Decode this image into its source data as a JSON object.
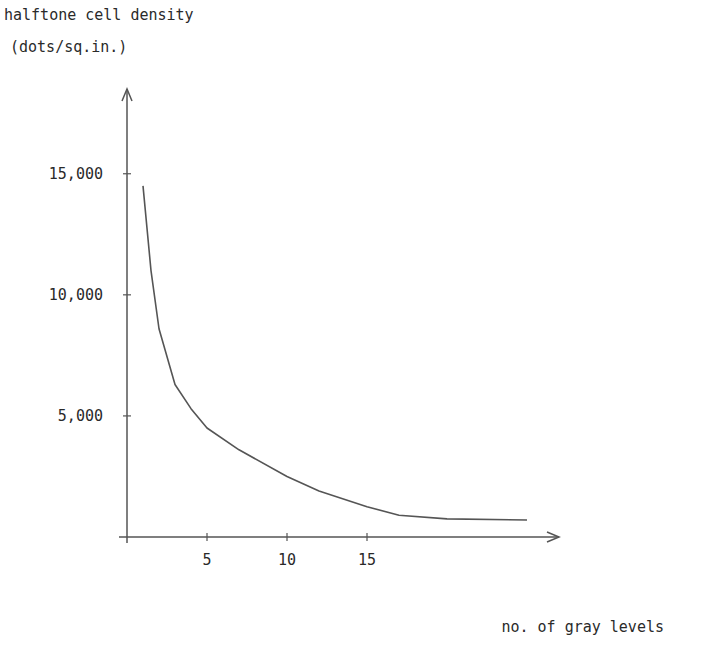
{
  "chart_data": {
    "type": "line",
    "y_label": "halftone cell density",
    "y_unit": "(dots/sq.in.)",
    "x_label": "no. of gray levels",
    "x": [
      1,
      1.5,
      2,
      3,
      4,
      5,
      7,
      10,
      12,
      15,
      17,
      20,
      25
    ],
    "values": [
      14500,
      11000,
      8600,
      6300,
      5300,
      4500,
      3600,
      2500,
      1900,
      1250,
      900,
      750,
      700
    ],
    "color": "#555555",
    "xlim": [
      0,
      27
    ],
    "ylim": [
      0,
      18500
    ],
    "xticks": [
      5,
      10,
      15
    ],
    "yticks": [
      {
        "value": 5000,
        "label": "5,000"
      },
      {
        "value": 10000,
        "label": "10,000"
      },
      {
        "value": 15000,
        "label": "15,000"
      }
    ],
    "grid": false
  }
}
